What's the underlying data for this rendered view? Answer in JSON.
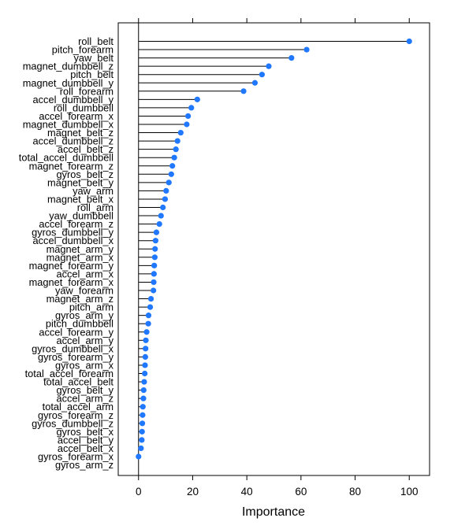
{
  "chart_data": {
    "type": "dot",
    "xlabel": "Importance",
    "ylabel": "",
    "xlim": [
      -7.5,
      107.5
    ],
    "xticks": [
      0,
      20,
      40,
      60,
      80,
      100
    ],
    "point_color": "#1f78ff",
    "line_color": "#000000",
    "categories": [
      "roll_belt",
      "pitch_forearm",
      "yaw_belt",
      "magnet_dumbbell_z",
      "pitch_belt",
      "magnet_dumbbell_y",
      "roll_forearm",
      "accel_dumbbell_y",
      "roll_dumbbell",
      "accel_forearm_x",
      "magnet_dumbbell_x",
      "magnet_belt_z",
      "accel_dumbbell_z",
      "accel_belt_z",
      "total_accel_dumbbell",
      "magnet_forearm_z",
      "gyros_belt_z",
      "magnet_belt_y",
      "yaw_arm",
      "magnet_belt_x",
      "roll_arm",
      "yaw_dumbbell",
      "accel_forearm_z",
      "gyros_dumbbell_y",
      "accel_dumbbell_x",
      "magnet_arm_y",
      "magnet_arm_x",
      "magnet_forearm_y",
      "accel_arm_x",
      "magnet_forearm_x",
      "yaw_forearm",
      "magnet_arm_z",
      "pitch_arm",
      "gyros_arm_y",
      "pitch_dumbbell",
      "accel_forearm_y",
      "accel_arm_y",
      "gyros_dumbbell_x",
      "gyros_forearm_y",
      "gyros_arm_x",
      "total_accel_forearm",
      "total_accel_belt",
      "gyros_belt_y",
      "accel_arm_z",
      "total_accel_arm",
      "gyros_forearm_z",
      "gyros_dumbbell_z",
      "gyros_belt_x",
      "accel_belt_y",
      "accel_belt_x",
      "gyros_forearm_x",
      "gyros_arm_z"
    ],
    "values": [
      100,
      62.1,
      56.5,
      48.1,
      45.6,
      43.0,
      38.8,
      21.7,
      19.5,
      18.3,
      17.8,
      15.6,
      14.4,
      13.8,
      13.2,
      12.5,
      12.1,
      11.2,
      10.2,
      9.8,
      9.0,
      8.3,
      7.7,
      6.6,
      6.3,
      6.1,
      6.0,
      5.8,
      5.7,
      5.6,
      5.5,
      4.6,
      4.3,
      3.7,
      3.6,
      3.0,
      2.7,
      2.6,
      2.5,
      2.4,
      2.3,
      2.1,
      1.9,
      1.8,
      1.6,
      1.5,
      1.4,
      1.3,
      1.2,
      0.9,
      0.0,
      null
    ]
  }
}
